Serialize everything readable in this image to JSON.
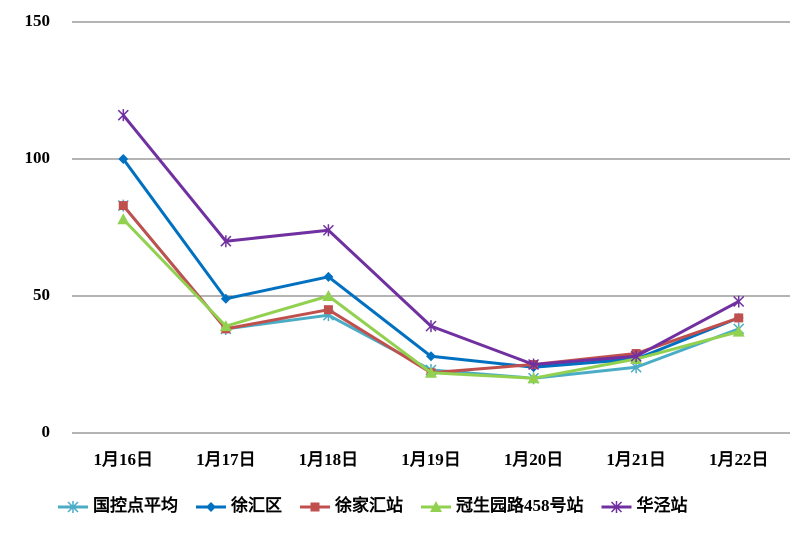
{
  "chart_data": {
    "type": "line",
    "categories": [
      "1月16日",
      "1月17日",
      "1月18日",
      "1月19日",
      "1月20日",
      "1月21日",
      "1月22日"
    ],
    "series": [
      {
        "name": "国控点平均",
        "color": "#4bacc6",
        "marker": "asterisk",
        "values": [
          83,
          38,
          43,
          23,
          20,
          24,
          38
        ]
      },
      {
        "name": "徐汇区",
        "color": "#0070c0",
        "marker": "diamond",
        "values": [
          100,
          49,
          57,
          28,
          24,
          27,
          42
        ]
      },
      {
        "name": "徐家汇站",
        "color": "#c0504d",
        "marker": "square",
        "values": [
          83,
          38,
          45,
          22,
          25,
          29,
          42
        ]
      },
      {
        "name": "冠生园路458号站",
        "color": "#92d050",
        "marker": "triangle",
        "values": [
          78,
          39,
          50,
          22,
          20,
          27,
          37
        ]
      },
      {
        "name": "华泾站",
        "color": "#7030a0",
        "marker": "asterisk",
        "values": [
          116,
          70,
          74,
          39,
          25,
          28,
          48
        ]
      }
    ],
    "ylim": [
      0,
      150
    ],
    "yticks": [
      0,
      50,
      100,
      150
    ],
    "grid": true,
    "legend": "bottom"
  }
}
